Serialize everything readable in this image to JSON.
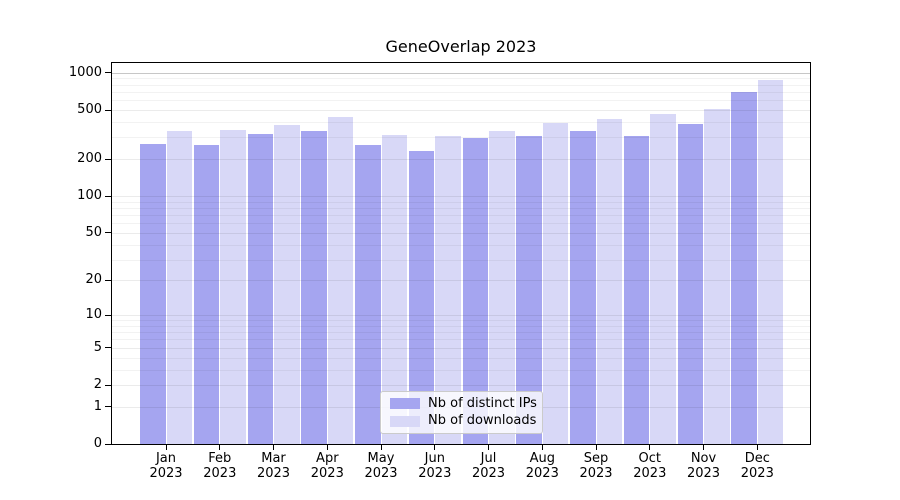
{
  "chart_data": {
    "type": "bar",
    "title": "GeneOverlap 2023",
    "year": "2023",
    "categories": [
      "Jan",
      "Feb",
      "Mar",
      "Apr",
      "May",
      "Jun",
      "Jul",
      "Aug",
      "Sep",
      "Oct",
      "Nov",
      "Dec"
    ],
    "series": [
      {
        "name": "Nb of distinct IPs",
        "color": "#a5a5f0",
        "values": [
          265,
          260,
          321,
          339,
          259,
          231,
          294,
          309,
          337,
          310,
          384,
          706
        ]
      },
      {
        "name": "Nb of downloads",
        "color": "#d8d8f7",
        "values": [
          335,
          343,
          380,
          435,
          315,
          309,
          339,
          391,
          420,
          463,
          507,
          878
        ]
      }
    ],
    "yscale": "log1p",
    "yticks": [
      0,
      1,
      2,
      5,
      10,
      20,
      50,
      100,
      200,
      500,
      1000
    ],
    "ylim": [
      0,
      1200
    ],
    "xlabel": "",
    "ylabel": "",
    "grid": "horizontal major+minor",
    "legend_position": "lower center inside plot"
  },
  "colors": {
    "background": "#ffffff",
    "spine": "#000000",
    "grid_minor": "rgba(0,0,0,0.05)",
    "grid_major": "rgba(0,0,0,0.08)",
    "grid_top": "rgba(0,0,0,0.22)"
  }
}
